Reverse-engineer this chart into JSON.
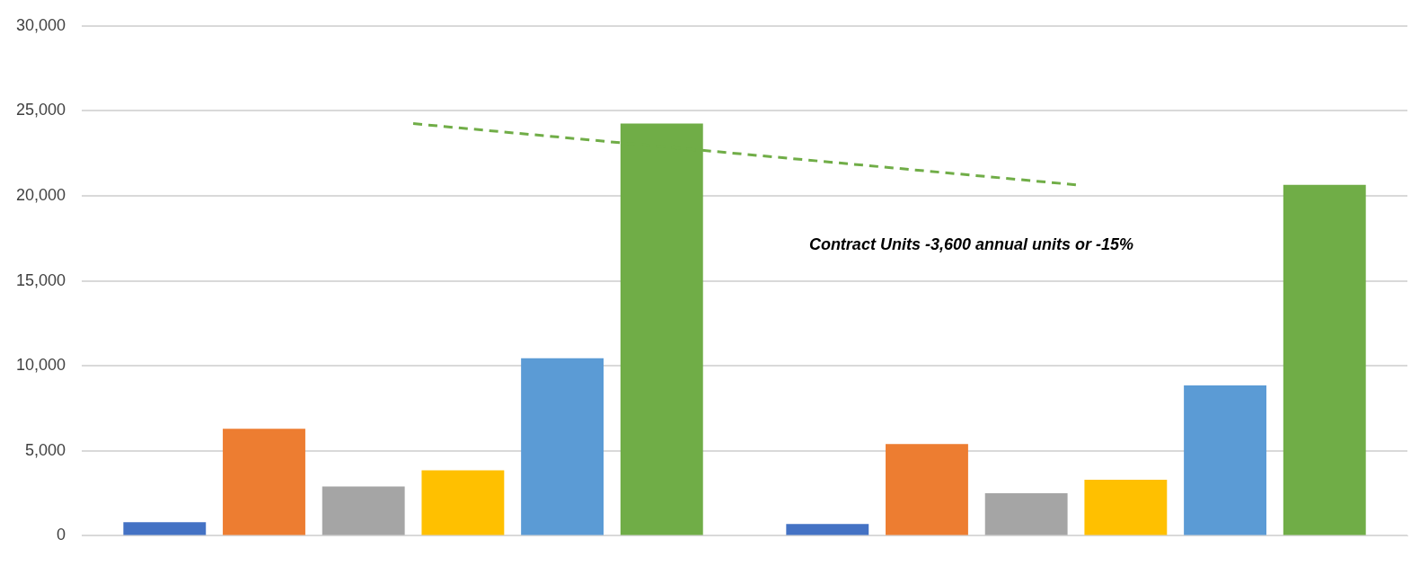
{
  "chart_data": {
    "type": "bar",
    "categories": [
      null,
      null
    ],
    "series": [
      {
        "color": "#4472c4",
        "values": [
          800,
          700
        ]
      },
      {
        "color": "#ed7d31",
        "values": [
          6300,
          5400
        ]
      },
      {
        "color": "#a5a5a5",
        "values": [
          2900,
          2500
        ]
      },
      {
        "color": "#ffc000",
        "values": [
          3850,
          3300
        ]
      },
      {
        "color": "#5b9bd5",
        "values": [
          10450,
          8850
        ]
      },
      {
        "color": "#70ad47",
        "values": [
          24250,
          20650
        ]
      },
      {
        "type": "line",
        "color": "#70ad47",
        "line_style": "dashed",
        "marker": "none",
        "values": [
          24250,
          20650
        ]
      }
    ],
    "ylim": [
      0,
      30000
    ],
    "yticks": [
      {
        "value": 0,
        "label": "0"
      },
      {
        "value": 5000,
        "label": "5,000"
      },
      {
        "value": 10000,
        "label": "10,000"
      },
      {
        "value": 15000,
        "label": "15,000"
      },
      {
        "value": 20000,
        "label": "20,000"
      },
      {
        "value": 25000,
        "label": "25,000"
      },
      {
        "value": 30000,
        "label": "30,000"
      }
    ],
    "grid": "y",
    "legend": false,
    "annotations": [
      "Contract Units -3,600 annual units or -15%"
    ]
  }
}
